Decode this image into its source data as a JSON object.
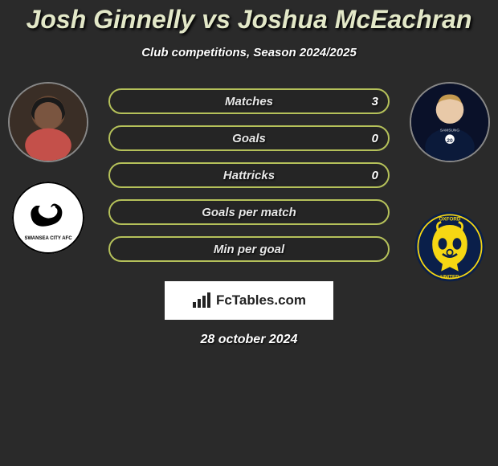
{
  "title": "Josh Ginnelly vs Joshua McEachran",
  "subtitle": "Club competitions, Season 2024/2025",
  "date": "28 october 2024",
  "logo_text": "FcTables.com",
  "colors": {
    "title_color": "#e3e8c8",
    "bar_border": "#b5c15a",
    "background": "#2a2a2a",
    "logo_bg": "#ffffff",
    "text_shadow": "#000000"
  },
  "bars": [
    {
      "label": "Matches",
      "right_value": "3"
    },
    {
      "label": "Goals",
      "right_value": "0"
    },
    {
      "label": "Hattricks",
      "right_value": "0"
    },
    {
      "label": "Goals per match",
      "right_value": ""
    },
    {
      "label": "Min per goal",
      "right_value": ""
    }
  ],
  "left_player": {
    "name": "Josh Ginnelly",
    "avatar_bg": "#3a2e26",
    "club_name": "Swansea City",
    "club_bg": "#ffffff",
    "club_accent": "#000000"
  },
  "right_player": {
    "name": "Joshua McEachran",
    "avatar_bg": "#0a1129",
    "club_name": "Oxford United",
    "club_bg": "#0a1f4a",
    "club_accent": "#f6d713"
  }
}
